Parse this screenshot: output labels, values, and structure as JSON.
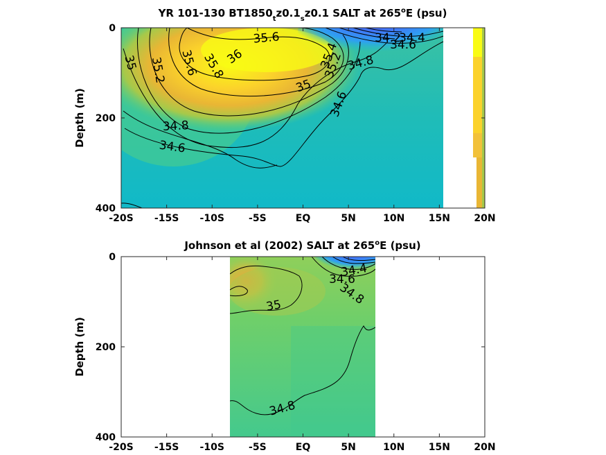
{
  "chart_data": [
    {
      "type": "heatmap",
      "title": {
        "prefix": "YR 101-130 BT1850",
        "sub1": "t",
        "mid": "z0.1",
        "sub2": "s",
        "suffix": "z0.1 SALT at 265",
        "sup": "o",
        "end": "E (psu)"
      },
      "ylabel": "Depth (m)",
      "x_tick_labels": [
        "-20S",
        "-15S",
        "-10S",
        "-5S",
        "EQ",
        "5N",
        "10N",
        "15N",
        "20N"
      ],
      "x_ticks": [
        -20,
        -15,
        -10,
        -5,
        0,
        5,
        10,
        15,
        20
      ],
      "y_tick_labels": [
        "0",
        "200",
        "400"
      ],
      "y_ticks": [
        0,
        200,
        400
      ],
      "xlim": [
        -20,
        20
      ],
      "ylim": [
        400,
        0
      ],
      "colormap": [
        "#3e26a8",
        "#4769f9",
        "#2f9ff2",
        "#1cbfd0",
        "#1ec8b5",
        "#52cf83",
        "#a6c94a",
        "#e9b634",
        "#fbd22b",
        "#f9fb14"
      ],
      "color_range_psu": [
        33.8,
        36.2
      ],
      "contour_labels": [
        "35.6",
        "36",
        "35.8",
        "35.6",
        "35.2",
        "35",
        "35",
        "35.4",
        "35.2",
        "34.2",
        "34.4",
        "34.6",
        "34.8",
        "34.6",
        "34.8",
        "34.6"
      ]
    },
    {
      "type": "heatmap",
      "title": {
        "prefix": "Johnson et al (2002) SALT at 265",
        "sup": "o",
        "end": "E (psu)"
      },
      "ylabel": "Depth (m)",
      "x_tick_labels": [
        "-20S",
        "-15S",
        "-10S",
        "-5S",
        "EQ",
        "5N",
        "10N",
        "15N",
        "20N"
      ],
      "x_ticks": [
        -20,
        -15,
        -10,
        -5,
        0,
        5,
        10,
        15,
        20
      ],
      "y_tick_labels": [
        "0",
        "200",
        "400"
      ],
      "y_ticks": [
        0,
        200,
        400
      ],
      "xlim": [
        -20,
        20
      ],
      "ylim": [
        400,
        0
      ],
      "data_extent_lat": [
        -8,
        8
      ],
      "contour_labels": [
        "34.4",
        "34.6",
        "34.8",
        "35",
        "34.8"
      ]
    }
  ]
}
